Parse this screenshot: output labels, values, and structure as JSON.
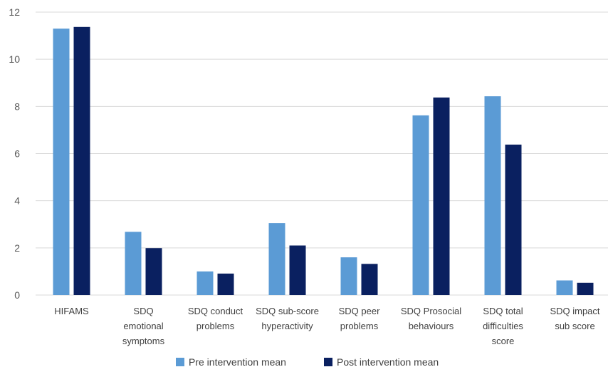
{
  "chart_data": {
    "type": "bar",
    "title": "",
    "xlabel": "",
    "ylabel": "",
    "ylim": [
      0,
      12
    ],
    "yticks": [
      0,
      2,
      4,
      6,
      8,
      10,
      12
    ],
    "grid": true,
    "legend_position": "bottom",
    "categories": [
      [
        "HIFAMS"
      ],
      [
        "SDQ",
        "emotional",
        "symptoms"
      ],
      [
        "SDQ conduct",
        "problems"
      ],
      [
        "SDQ sub-score",
        "hyperactivity"
      ],
      [
        "SDQ peer",
        "problems"
      ],
      [
        "SDQ Prosocial",
        "behaviours"
      ],
      [
        "SDQ total",
        "difficulties",
        "score"
      ],
      [
        "SDQ impact",
        "sub score"
      ]
    ],
    "series": [
      {
        "name": "Pre intervention mean",
        "color": "#5b9bd5",
        "values": [
          11.3,
          2.68,
          1.0,
          3.05,
          1.6,
          7.62,
          8.43,
          0.62
        ]
      },
      {
        "name": "Post intervention mean",
        "color": "#0a2060",
        "values": [
          11.37,
          1.99,
          0.91,
          2.1,
          1.32,
          8.38,
          6.38,
          0.52
        ]
      }
    ]
  }
}
